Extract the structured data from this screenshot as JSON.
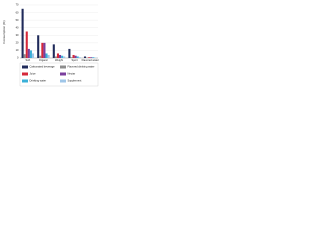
{
  "chart_data": {
    "type": "bar",
    "y_label": "Consumption (%)",
    "categories": [
      "Soft",
      "Organic",
      "Weight",
      "Sport",
      "Flavored water"
    ],
    "series": [
      {
        "name": "Carbonated beverage",
        "color": "#1f2a5a",
        "values": [
          65,
          30,
          18,
          12,
          2
        ]
      },
      {
        "name": "Flavored drinking water",
        "color": "#8c8c8c",
        "values": [
          5,
          3,
          2,
          1,
          0.5
        ]
      },
      {
        "name": "Juice",
        "color": "#d6283a",
        "values": [
          35,
          20,
          6,
          4,
          1
        ]
      },
      {
        "name": "Nectar",
        "color": "#7a3e9d",
        "values": [
          12,
          20,
          4,
          3,
          1
        ]
      },
      {
        "name": "Drinking water",
        "color": "#3ab0d8",
        "values": [
          10,
          6,
          3,
          2,
          1
        ]
      },
      {
        "name": "Supplement",
        "color": "#9fc6e8",
        "values": [
          6,
          4,
          2,
          1,
          0.5
        ]
      }
    ],
    "ylim": [
      0,
      70
    ],
    "yticks": [
      0,
      10,
      20,
      30,
      40,
      50,
      60,
      70
    ],
    "grid": true
  }
}
